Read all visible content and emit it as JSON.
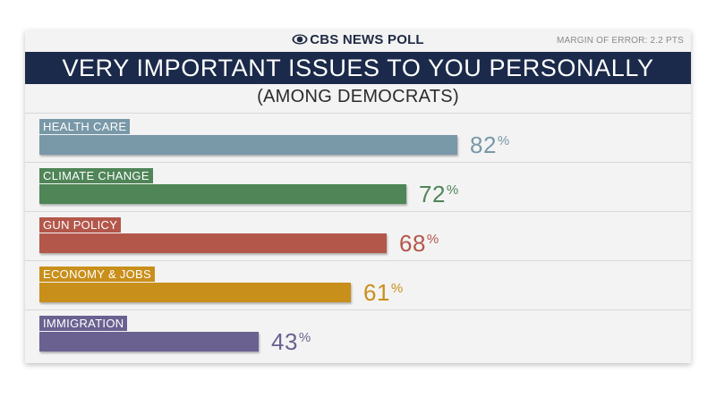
{
  "header": {
    "brand": "CBS NEWS POLL",
    "margin_of_error": "MARGIN OF ERROR: 2.2 PTS",
    "title": "VERY IMPORTANT ISSUES TO YOU PERSONALLY",
    "subtitle": "(AMONG DEMOCRATS)"
  },
  "colors": {
    "title_band": "#1b2a4a",
    "background": "#f3f3f3",
    "Health Care": "#7998a8",
    "Climate Change": "#4f8557",
    "Gun Policy": "#b3574a",
    "Economy & Jobs": "#c98f1b",
    "Immigration": "#6a6191"
  },
  "chart_data": {
    "type": "bar",
    "orientation": "horizontal",
    "title": "VERY IMPORTANT ISSUES TO YOU PERSONALLY",
    "subtitle": "(AMONG DEMOCRATS)",
    "categories": [
      "HEALTH CARE",
      "CLIMATE CHANGE",
      "GUN POLICY",
      "ECONOMY & JOBS",
      "IMMIGRATION"
    ],
    "values": [
      82,
      72,
      68,
      61,
      43
    ],
    "value_suffix": "%",
    "colors": [
      "#7998a8",
      "#4f8557",
      "#b3574a",
      "#c98f1b",
      "#6a6191"
    ],
    "xlim": [
      0,
      100
    ],
    "grid": false,
    "legend": "none"
  }
}
